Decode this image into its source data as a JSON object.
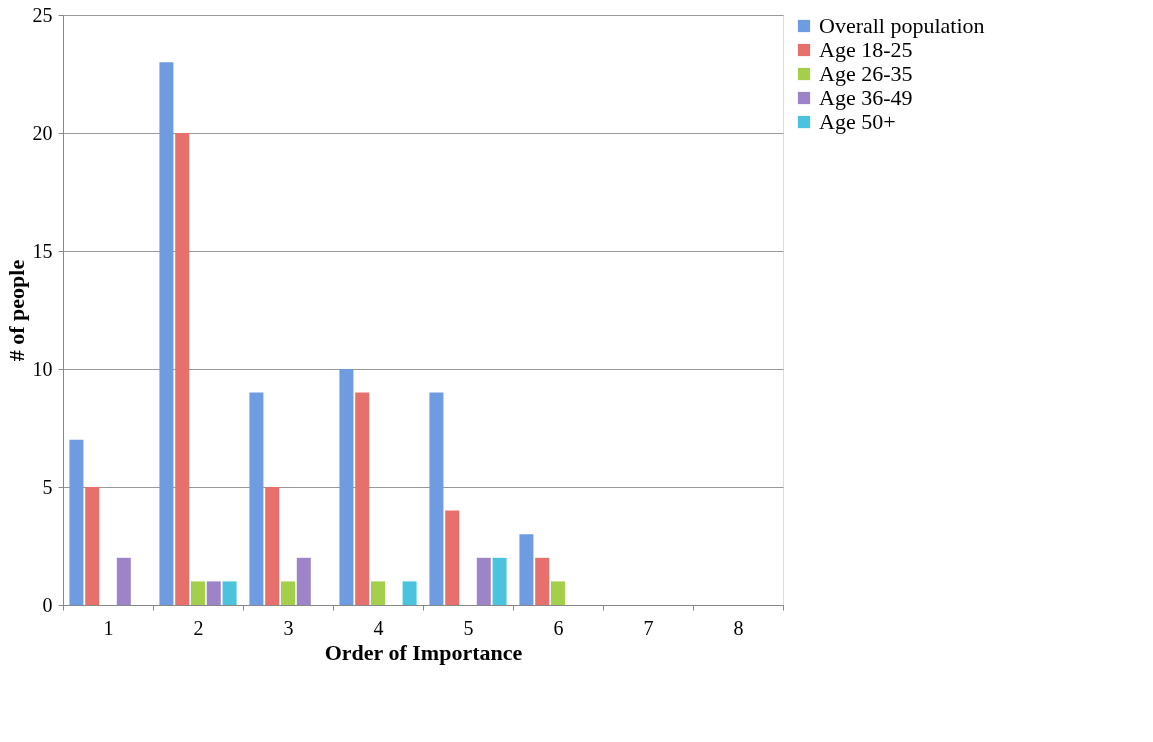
{
  "chart_data": {
    "type": "bar",
    "xlabel": "Order of Importance",
    "ylabel": "# of people",
    "categories": [
      "1",
      "2",
      "3",
      "4",
      "5",
      "6",
      "7",
      "8"
    ],
    "series": [
      {
        "name": "Overall population",
        "color": "#6f9be0",
        "values": [
          7,
          23,
          9,
          10,
          9,
          3,
          0,
          0
        ]
      },
      {
        "name": "Age 18-25",
        "color": "#e8706c",
        "values": [
          5,
          20,
          5,
          9,
          4,
          2,
          0,
          0
        ]
      },
      {
        "name": "Age 26-35",
        "color": "#a4cf4a",
        "values": [
          0,
          1,
          1,
          1,
          0,
          1,
          0,
          0
        ]
      },
      {
        "name": "Age 36-49",
        "color": "#9d84c8",
        "values": [
          2,
          1,
          2,
          0,
          2,
          0,
          0,
          0
        ]
      },
      {
        "name": "Age 50+",
        "color": "#4cc3dc",
        "values": [
          0,
          1,
          0,
          1,
          2,
          0,
          0,
          0
        ]
      }
    ],
    "ylim": [
      0,
      25
    ],
    "yticks": [
      0,
      5,
      10,
      15,
      20,
      25
    ],
    "grid": "y",
    "legend": "right"
  }
}
